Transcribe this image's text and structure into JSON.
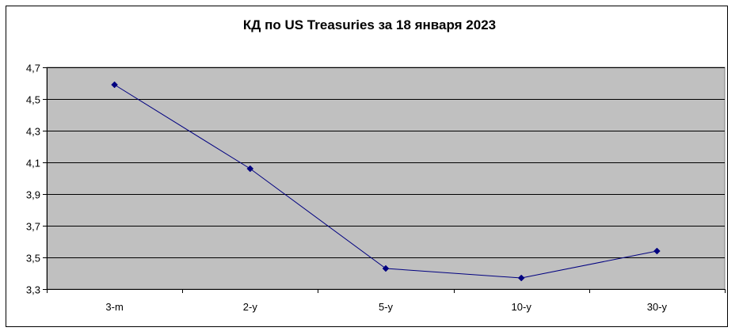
{
  "chart_data": {
    "type": "line",
    "title": "КД по US Treasuries за 18 января 2023",
    "categories": [
      "3-m",
      "2-y",
      "5-y",
      "10-y",
      "30-y"
    ],
    "series": [
      {
        "values": [
          4.59,
          4.06,
          3.43,
          3.37,
          3.54
        ]
      }
    ],
    "yticks": [
      "3,3",
      "3,5",
      "3,7",
      "3,9",
      "4,1",
      "4,3",
      "4,5",
      "4,7"
    ],
    "ylim": [
      3.3,
      4.7
    ],
    "grid": true,
    "legend": "none",
    "colors": {
      "plot_bg": "#c0c0c0",
      "line": "#000080",
      "grid": "#000000"
    }
  }
}
